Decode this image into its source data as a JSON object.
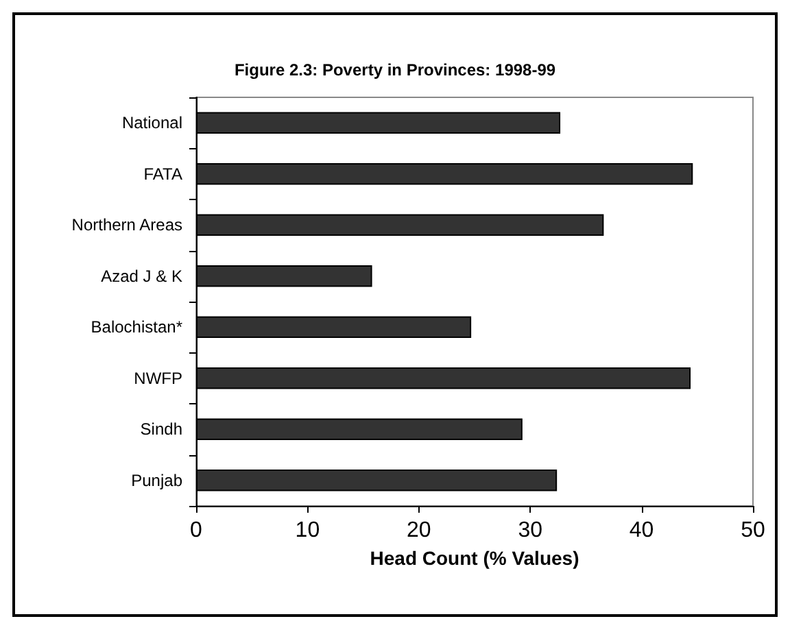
{
  "chart_data": {
    "type": "bar",
    "orientation": "horizontal",
    "title": "Figure 2.3: Poverty in Provinces: 1998-99",
    "xlabel": "Head Count (% Values)",
    "categories": [
      "National",
      "FATA",
      "Northern Areas",
      "Azad J & K",
      "Balochistan*",
      "NWFP",
      "Sindh",
      "Punjab"
    ],
    "values": [
      32.7,
      44.6,
      36.6,
      15.8,
      24.7,
      44.4,
      29.3,
      32.4
    ],
    "color": "#333333",
    "xlim": [
      0,
      50
    ],
    "xticks": [
      0,
      10,
      20,
      30,
      40,
      50
    ],
    "grid": false
  }
}
